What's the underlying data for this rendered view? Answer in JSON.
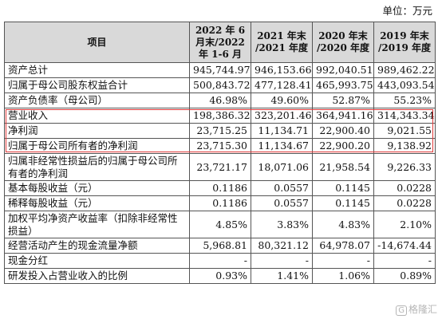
{
  "unit_label": "单位：万元",
  "headers": [
    "项目",
    "2022 年 6 月末/2022 年 1-6 月",
    "2021 年末 /2021 年度",
    "2020 年末 /2020 年度",
    "2019 年末 /2019 年度"
  ],
  "rows": [
    {
      "label": "资产总计",
      "values": [
        "945,744.97",
        "946,153.66",
        "992,040.51",
        "989,462.22"
      ],
      "tall": false
    },
    {
      "label": "归属于母公司股东权益合计",
      "values": [
        "500,843.72",
        "477,128.41",
        "465,993.75",
        "443,093.54"
      ],
      "tall": false
    },
    {
      "label": "资产负债率（母公司）",
      "values": [
        "46.98%",
        "49.60%",
        "52.87%",
        "55.23%"
      ],
      "tall": false
    },
    {
      "label": "营业收入",
      "values": [
        "198,386.32",
        "323,201.46",
        "364,941.16",
        "314,343.34"
      ],
      "tall": false
    },
    {
      "label": "净利润",
      "values": [
        "23,715.25",
        "11,134.71",
        "22,900.40",
        "9,021.55"
      ],
      "tall": false
    },
    {
      "label": "归属于母公司所有者的净利润",
      "values": [
        "23,715.30",
        "11,134.67",
        "22,900.20",
        "9,138.92"
      ],
      "tall": false
    },
    {
      "label": "归属非经常性损益后的归属于母公司所有者的净利润",
      "values": [
        "23,721.17",
        "18,071.06",
        "21,958.54",
        "9,226.33"
      ],
      "tall": true
    },
    {
      "label": "基本每股收益（元）",
      "values": [
        "0.1186",
        "0.0557",
        "0.1145",
        "0.0228"
      ],
      "tall": false
    },
    {
      "label": "稀释每股收益（元）",
      "values": [
        "0.1186",
        "0.0557",
        "0.1145",
        "0.0228"
      ],
      "tall": false
    },
    {
      "label": "加权平均净资产收益率（扣除非经常性损益）",
      "values": [
        "4.85%",
        "3.83%",
        "4.83%",
        "2.10%"
      ],
      "tall": true
    },
    {
      "label": "经营活动产生的现金流量净额",
      "values": [
        "5,968.81",
        "80,321.12",
        "64,978.07",
        "-14,674.44"
      ],
      "tall": false
    },
    {
      "label": "现金分红",
      "values": [
        "-",
        "-",
        "-",
        "-"
      ],
      "tall": false
    },
    {
      "label": "研发投入占营业收入的比例",
      "values": [
        "0.93%",
        "1.41%",
        "1.06%",
        "0.89%"
      ],
      "tall": false
    }
  ],
  "highlight_color": "#e03a3a",
  "watermark": {
    "badge": "G",
    "text": "格隆汇"
  }
}
